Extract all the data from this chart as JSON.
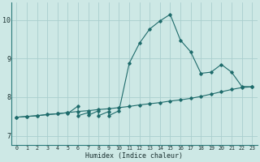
{
  "background_color": "#cde8e5",
  "grid_color": "#aacece",
  "line_color": "#1e6b6b",
  "xlabel": "Humidex (Indice chaleur)",
  "xlim": [
    -0.5,
    23.5
  ],
  "ylim": [
    6.75,
    10.45
  ],
  "x_ticks": [
    0,
    1,
    2,
    3,
    4,
    5,
    6,
    7,
    8,
    9,
    10,
    11,
    12,
    13,
    14,
    15,
    16,
    17,
    18,
    19,
    20,
    21,
    22,
    23
  ],
  "y_ticks": [
    7,
    8,
    9,
    10
  ],
  "line1_x": [
    0,
    1,
    2,
    3,
    4,
    5,
    6,
    7,
    8,
    9,
    10,
    11,
    12,
    13,
    14,
    15,
    16,
    17,
    18,
    19,
    20,
    21,
    22,
    23
  ],
  "line1_y": [
    7.48,
    7.5,
    7.52,
    7.55,
    7.57,
    7.6,
    7.63,
    7.65,
    7.68,
    7.7,
    7.73,
    7.76,
    7.8,
    7.83,
    7.86,
    7.9,
    7.93,
    7.97,
    8.02,
    8.08,
    8.14,
    8.2,
    8.25,
    8.27
  ],
  "line2_x": [
    0,
    1,
    2,
    3,
    4,
    5,
    5,
    6,
    6,
    7,
    7,
    8,
    8,
    9,
    9,
    10,
    11,
    12,
    13,
    14,
    15,
    16,
    17,
    18,
    19,
    20,
    21,
    22,
    23
  ],
  "line2_y": [
    7.48,
    7.5,
    7.52,
    7.55,
    7.57,
    7.6,
    7.58,
    7.77,
    7.52,
    7.6,
    7.53,
    7.65,
    7.52,
    7.63,
    7.52,
    7.65,
    8.88,
    9.4,
    9.77,
    9.98,
    10.15,
    9.48,
    9.18,
    8.62,
    8.65,
    8.85,
    8.65,
    8.28,
    8.27
  ]
}
